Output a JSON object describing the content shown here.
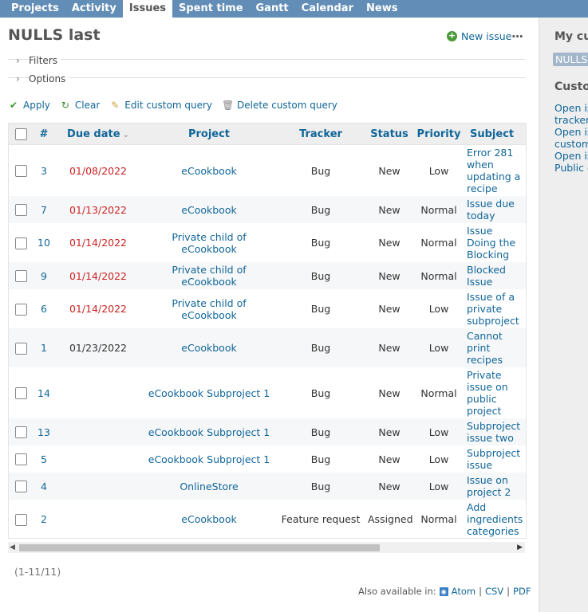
{
  "menu": {
    "tabs": [
      {
        "label": "Projects"
      },
      {
        "label": "Activity"
      },
      {
        "label": "Issues"
      },
      {
        "label": "Spent time"
      },
      {
        "label": "Gantt"
      },
      {
        "label": "Calendar"
      },
      {
        "label": "News"
      }
    ],
    "selected": "Issues"
  },
  "page": {
    "title": "NULLS last",
    "new_issue_label": "New issue",
    "filters_label": "Filters",
    "options_label": "Options",
    "apply_label": "Apply",
    "clear_label": "Clear",
    "edit_query_label": "Edit custom query",
    "delete_query_label": "Delete custom query"
  },
  "table": {
    "columns": [
      "#",
      "Due date",
      "Project",
      "Tracker",
      "Status",
      "Priority",
      "Subject"
    ],
    "rows": [
      {
        "id": "3",
        "due": "01/08/2022",
        "overdue": true,
        "project": "eCookbook",
        "tracker": "Bug",
        "status": "New",
        "priority": "Low",
        "subject": "Error 281 when updating a recipe"
      },
      {
        "id": "7",
        "due": "01/13/2022",
        "overdue": true,
        "project": "eCookbook",
        "tracker": "Bug",
        "status": "New",
        "priority": "Normal",
        "subject": "Issue due today"
      },
      {
        "id": "10",
        "due": "01/14/2022",
        "overdue": true,
        "project": "Private child of eCookbook",
        "tracker": "Bug",
        "status": "New",
        "priority": "Normal",
        "subject": "Issue Doing the Blocking"
      },
      {
        "id": "9",
        "due": "01/14/2022",
        "overdue": true,
        "project": "Private child of eCookbook",
        "tracker": "Bug",
        "status": "New",
        "priority": "Normal",
        "subject": "Blocked Issue"
      },
      {
        "id": "6",
        "due": "01/14/2022",
        "overdue": true,
        "project": "Private child of eCookbook",
        "tracker": "Bug",
        "status": "New",
        "priority": "Low",
        "subject": "Issue of a private subproject"
      },
      {
        "id": "1",
        "due": "01/23/2022",
        "overdue": false,
        "project": "eCookbook",
        "tracker": "Bug",
        "status": "New",
        "priority": "Low",
        "subject": "Cannot print recipes"
      },
      {
        "id": "14",
        "due": "",
        "overdue": false,
        "project": "eCookbook Subproject 1",
        "tracker": "Bug",
        "status": "New",
        "priority": "Normal",
        "subject": "Private issue on public project"
      },
      {
        "id": "13",
        "due": "",
        "overdue": false,
        "project": "eCookbook Subproject 1",
        "tracker": "Bug",
        "status": "New",
        "priority": "Low",
        "subject": "Subproject issue two"
      },
      {
        "id": "5",
        "due": "",
        "overdue": false,
        "project": "eCookbook Subproject 1",
        "tracker": "Bug",
        "status": "New",
        "priority": "Low",
        "subject": "Subproject issue"
      },
      {
        "id": "4",
        "due": "",
        "overdue": false,
        "project": "OnlineStore",
        "tracker": "Bug",
        "status": "New",
        "priority": "Low",
        "subject": "Issue on project 2"
      },
      {
        "id": "2",
        "due": "",
        "overdue": false,
        "project": "eCookbook",
        "tracker": "Feature request",
        "status": "Assigned",
        "priority": "Normal",
        "subject": "Add ingredients categories"
      }
    ]
  },
  "pagination": "(1-11/11)",
  "formats": {
    "label": "Also available in:",
    "atom": "Atom",
    "csv": "CSV",
    "pdf": "PDF",
    "sep": "|"
  },
  "sidebar": {
    "my_queries_heading": "My cus",
    "selected_query": "NULLS",
    "custom_heading": "Custo",
    "links": [
      "Open is",
      "tracker",
      "Open is",
      "custom",
      "Open is",
      "Public c"
    ]
  },
  "colors": {
    "menu_bg": "#628db6",
    "link": "#116699",
    "overdue": "#cc2222"
  },
  "icons": {
    "new_issue": "plus-circle-icon",
    "apply": "check-icon",
    "clear": "reload-icon",
    "edit": "pencil-icon",
    "delete": "trash-icon",
    "atom": "feed-icon"
  }
}
